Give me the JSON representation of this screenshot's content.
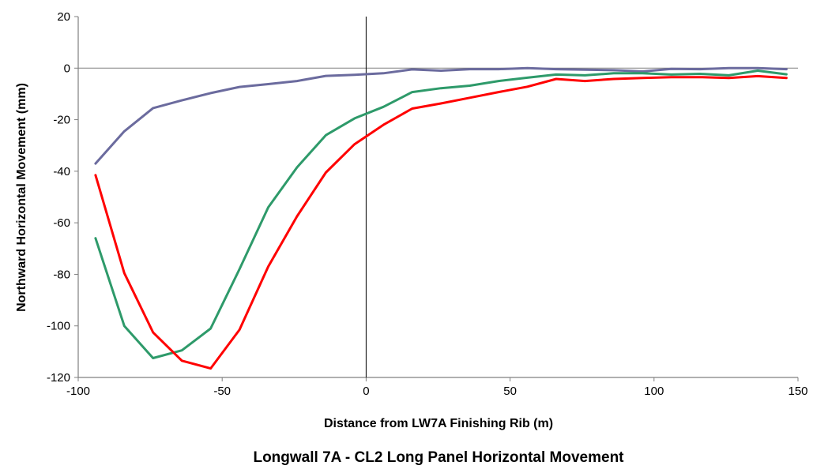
{
  "chart_data": {
    "type": "line",
    "title": "Longwall 7A - CL2 Long Panel Horizontal Movement",
    "xlabel": "Distance from LW7A Finishing Rib (m)",
    "ylabel": "Northward Horizontal Movement (mm)",
    "xlim": [
      -100,
      150
    ],
    "ylim": [
      -120,
      20
    ],
    "xticks": [
      -100,
      -50,
      0,
      50,
      100,
      150
    ],
    "yticks": [
      20,
      0,
      -20,
      -40,
      -60,
      -80,
      -100,
      -120
    ],
    "grid": false,
    "legend": "none",
    "reference_lines": {
      "y": 0,
      "x": 0
    },
    "series": [
      {
        "color": "#6b6b9e",
        "x": [
          -94,
          -84,
          -74,
          -64,
          -54,
          -44,
          -34,
          -24,
          -14,
          -4,
          6,
          16,
          26,
          36,
          46,
          56,
          66,
          76,
          86,
          96,
          106,
          116,
          126,
          136,
          146
        ],
        "y": [
          -37,
          -24.5,
          -15.5,
          -12.5,
          -9.7,
          -7.3,
          -6.2,
          -5,
          -3,
          -2.6,
          -2,
          -0.5,
          -1,
          -0.4,
          -0.4,
          0,
          -0.4,
          -0.6,
          -0.8,
          -1.3,
          -0.3,
          -0.4,
          0,
          0,
          -0.4
        ]
      },
      {
        "color": "#2e9a6a",
        "x": [
          -94,
          -84,
          -74,
          -64,
          -54,
          -44,
          -34,
          -24,
          -14,
          -4,
          6,
          16,
          26,
          36,
          46,
          56,
          66,
          76,
          86,
          96,
          106,
          116,
          126,
          136,
          146
        ],
        "y": [
          -66,
          -100,
          -112.5,
          -109.5,
          -101,
          -78,
          -54,
          -38.5,
          -26,
          -19.5,
          -15,
          -9.3,
          -7.8,
          -6.8,
          -5,
          -3.7,
          -2.5,
          -2.8,
          -2,
          -2,
          -2.5,
          -2.2,
          -2.8,
          -1,
          -2.4
        ]
      },
      {
        "color": "#ff0000",
        "x": [
          -94,
          -84,
          -74,
          -64,
          -54,
          -44,
          -34,
          -24,
          -14,
          -4,
          6,
          16,
          26,
          36,
          46,
          56,
          66,
          76,
          86,
          96,
          106,
          116,
          126,
          136,
          146
        ],
        "y": [
          -41.5,
          -79.5,
          -102.5,
          -113.5,
          -116.5,
          -101.5,
          -77,
          -57.5,
          -40.5,
          -29.5,
          -22,
          -15.7,
          -13.7,
          -11.5,
          -9.3,
          -7.2,
          -4.2,
          -5,
          -4.2,
          -3.8,
          -3.5,
          -3.5,
          -3.8,
          -3.1,
          -3.8
        ]
      }
    ]
  }
}
